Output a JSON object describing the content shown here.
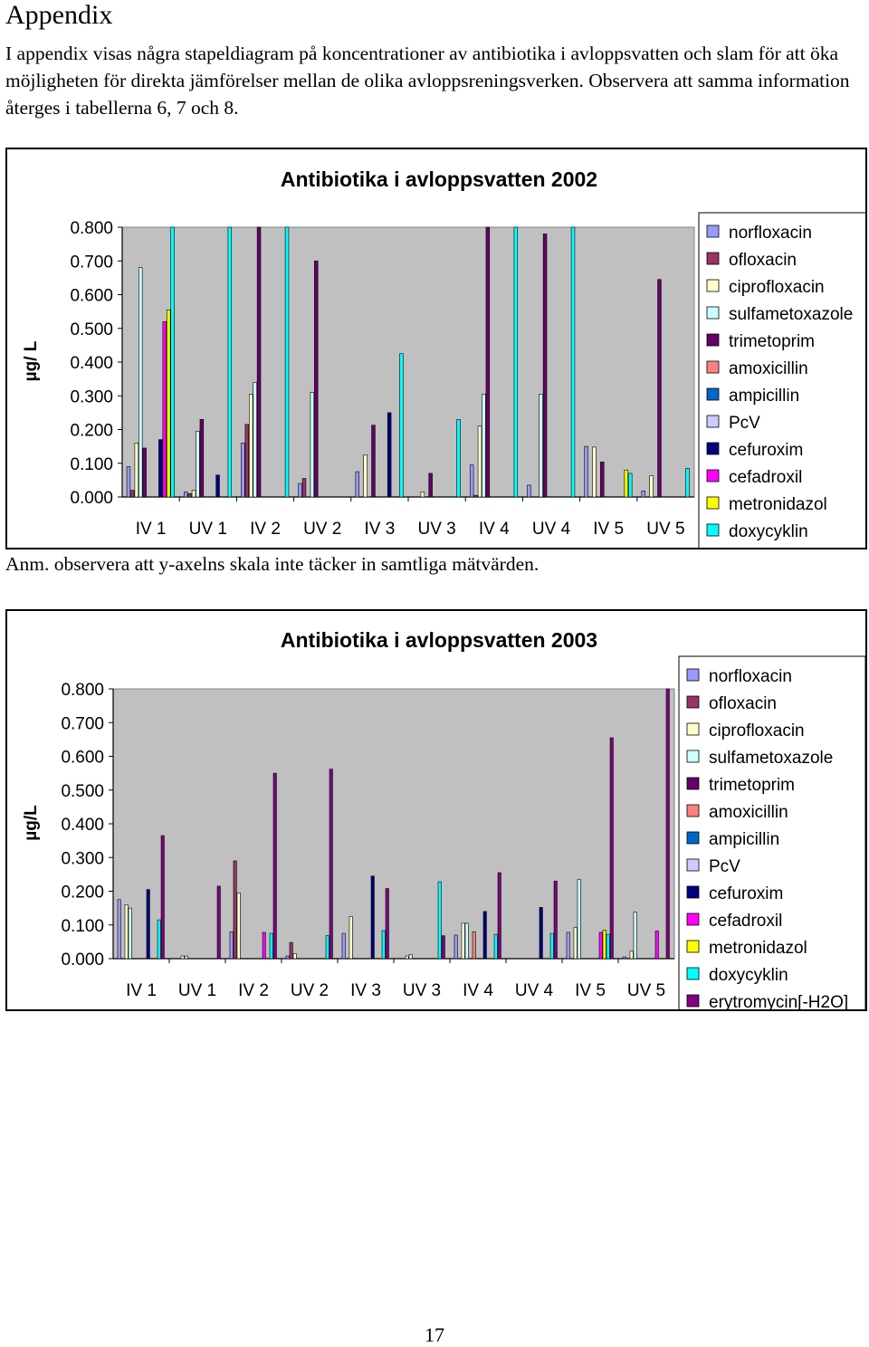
{
  "page": {
    "heading": "Appendix",
    "intro": "I appendix visas några stapeldiagram på koncentrationer av antibiotika i avloppsvatten och slam för att öka möjligheten för direkta jämförelser mellan de olika avloppsreningsverken. Observera att samma information återges i tabellerna 6, 7 och 8.",
    "note": "Anm. observera att y-axelns skala inte täcker in samtliga mätvärden.",
    "page_number": "17"
  },
  "colors": {
    "plot_background": "#c0c0c0",
    "series": {
      "norfloxacin": "#9999ff",
      "ofloxacin": "#993366",
      "ciprofloxacin": "#ffffcc",
      "sulfametoxazole": "#ccffff",
      "trimetoprim": "#660066",
      "amoxicillin": "#ff8080",
      "ampicillin": "#0066cc",
      "PcV": "#ccccff",
      "cefuroxim": "#000080",
      "cefadroxil": "#ff00ff",
      "metronidazol": "#ffff00",
      "doxycyklin": "#00ffff",
      "erytromycin[-H2O]": "#800080"
    }
  },
  "chart_data": [
    {
      "type": "bar",
      "title": "Antibiotika i avloppsvatten 2002",
      "ylabel": "µg/ L",
      "xlabel": "",
      "ylim": [
        0,
        0.8
      ],
      "yticks": [
        "0.000",
        "0.100",
        "0.200",
        "0.300",
        "0.400",
        "0.500",
        "0.600",
        "0.700",
        "0.800"
      ],
      "grid": false,
      "legend_position": "right",
      "categories": [
        "IV 1",
        "UV 1",
        "IV 2",
        "UV 2",
        "IV 3",
        "UV 3",
        "IV 4",
        "UV 4",
        "IV 5",
        "UV 5"
      ],
      "series": [
        {
          "name": "norfloxacin",
          "values": [
            0.09,
            0.015,
            0.16,
            0.04,
            0.075,
            0.0,
            0.095,
            0.035,
            0.15,
            0.018
          ]
        },
        {
          "name": "ofloxacin",
          "values": [
            0.02,
            0.01,
            0.215,
            0.055,
            0.0,
            0.0,
            0.005,
            0.0,
            0.0,
            0.0
          ]
        },
        {
          "name": "ciprofloxacin",
          "values": [
            0.16,
            0.02,
            0.305,
            0.0,
            0.125,
            0.015,
            0.21,
            0.0,
            0.148,
            0.063
          ]
        },
        {
          "name": "sulfametoxazole",
          "values": [
            0.68,
            0.195,
            0.34,
            0.31,
            0.0,
            0.0,
            0.305,
            0.305,
            0.0,
            0.0
          ]
        },
        {
          "name": "trimetoprim",
          "values": [
            0.145,
            0.23,
            0.8,
            0.7,
            0.213,
            0.07,
            0.8,
            0.78,
            0.104,
            0.645
          ]
        },
        {
          "name": "amoxicillin",
          "values": [
            0.0,
            0.0,
            0.0,
            0.0,
            0.0,
            0.0,
            0.0,
            0.0,
            0.0,
            0.0
          ]
        },
        {
          "name": "ampicillin",
          "values": [
            0.0,
            0.0,
            0.0,
            0.0,
            0.0,
            0.0,
            0.0,
            0.0,
            0.0,
            0.0
          ]
        },
        {
          "name": "PcV",
          "values": [
            0.0,
            0.0,
            0.0,
            0.0,
            0.0,
            0.0,
            0.0,
            0.0,
            0.0,
            0.0
          ]
        },
        {
          "name": "cefuroxim",
          "values": [
            0.17,
            0.065,
            0.0,
            0.0,
            0.25,
            0.0,
            0.0,
            0.0,
            0.0,
            0.0
          ]
        },
        {
          "name": "cefadroxil",
          "values": [
            0.52,
            0.0,
            0.0,
            0.0,
            0.0,
            0.0,
            0.0,
            0.0,
            0.0,
            0.0
          ]
        },
        {
          "name": "metronidazol",
          "values": [
            0.555,
            0.0,
            0.0,
            0.0,
            0.0,
            0.0,
            0.0,
            0.0,
            0.08,
            0.0
          ]
        },
        {
          "name": "doxycyklin",
          "values": [
            0.8,
            0.8,
            0.8,
            0.0,
            0.425,
            0.23,
            0.8,
            0.8,
            0.07,
            0.085
          ]
        }
      ]
    },
    {
      "type": "bar",
      "title": "Antibiotika i avloppsvatten 2003",
      "ylabel": "µg/L",
      "xlabel": "",
      "ylim": [
        0,
        0.8
      ],
      "yticks": [
        "0.000",
        "0.100",
        "0.200",
        "0.300",
        "0.400",
        "0.500",
        "0.600",
        "0.700",
        "0.800"
      ],
      "grid": false,
      "legend_position": "right",
      "categories": [
        "IV 1",
        "UV 1",
        "IV 2",
        "UV 2",
        "IV 3",
        "UV 3",
        "IV 4",
        "UV 4",
        "IV 5",
        "UV 5"
      ],
      "series": [
        {
          "name": "norfloxacin",
          "values": [
            0.175,
            0.0,
            0.08,
            0.008,
            0.075,
            0.0,
            0.07,
            0.0,
            0.078,
            0.005
          ]
        },
        {
          "name": "ofloxacin",
          "values": [
            0.0,
            0.0,
            0.29,
            0.048,
            0.0,
            0.0,
            0.0,
            0.0,
            0.0,
            0.0
          ]
        },
        {
          "name": "ciprofloxacin",
          "values": [
            0.16,
            0.008,
            0.195,
            0.015,
            0.125,
            0.008,
            0.105,
            0.0,
            0.092,
            0.022
          ]
        },
        {
          "name": "sulfametoxazole",
          "values": [
            0.15,
            0.008,
            0.0,
            0.0,
            0.0,
            0.012,
            0.105,
            0.0,
            0.235,
            0.138
          ]
        },
        {
          "name": "trimetoprim",
          "values": [
            0.0,
            0.0,
            0.0,
            0.0,
            0.0,
            0.0,
            0.0,
            0.0,
            0.0,
            0.0
          ]
        },
        {
          "name": "amoxicillin",
          "values": [
            0.0,
            0.0,
            0.0,
            0.0,
            0.0,
            0.0,
            0.08,
            0.0,
            0.0,
            0.0
          ]
        },
        {
          "name": "ampicillin",
          "values": [
            0.0,
            0.0,
            0.0,
            0.0,
            0.0,
            0.0,
            0.0,
            0.0,
            0.0,
            0.0
          ]
        },
        {
          "name": "PcV",
          "values": [
            0.0,
            0.0,
            0.0,
            0.0,
            0.0,
            0.0,
            0.0,
            0.0,
            0.0,
            0.0
          ]
        },
        {
          "name": "cefuroxim",
          "values": [
            0.205,
            0.0,
            0.0,
            0.0,
            0.245,
            0.0,
            0.14,
            0.152,
            0.0,
            0.0
          ]
        },
        {
          "name": "cefadroxil",
          "values": [
            0.0,
            0.0,
            0.078,
            0.0,
            0.0,
            0.0,
            0.0,
            0.0,
            0.078,
            0.082
          ]
        },
        {
          "name": "metronidazol",
          "values": [
            0.0,
            0.0,
            0.0,
            0.0,
            0.0,
            0.0,
            0.0,
            0.0,
            0.085,
            0.0
          ]
        },
        {
          "name": "doxycyklin",
          "values": [
            0.115,
            0.0,
            0.075,
            0.068,
            0.083,
            0.228,
            0.072,
            0.075,
            0.072,
            0.0
          ]
        },
        {
          "name": "erytromycin[-H2O]",
          "values": [
            0.365,
            0.215,
            0.55,
            0.562,
            0.208,
            0.068,
            0.255,
            0.23,
            0.655,
            0.8
          ]
        }
      ]
    }
  ]
}
